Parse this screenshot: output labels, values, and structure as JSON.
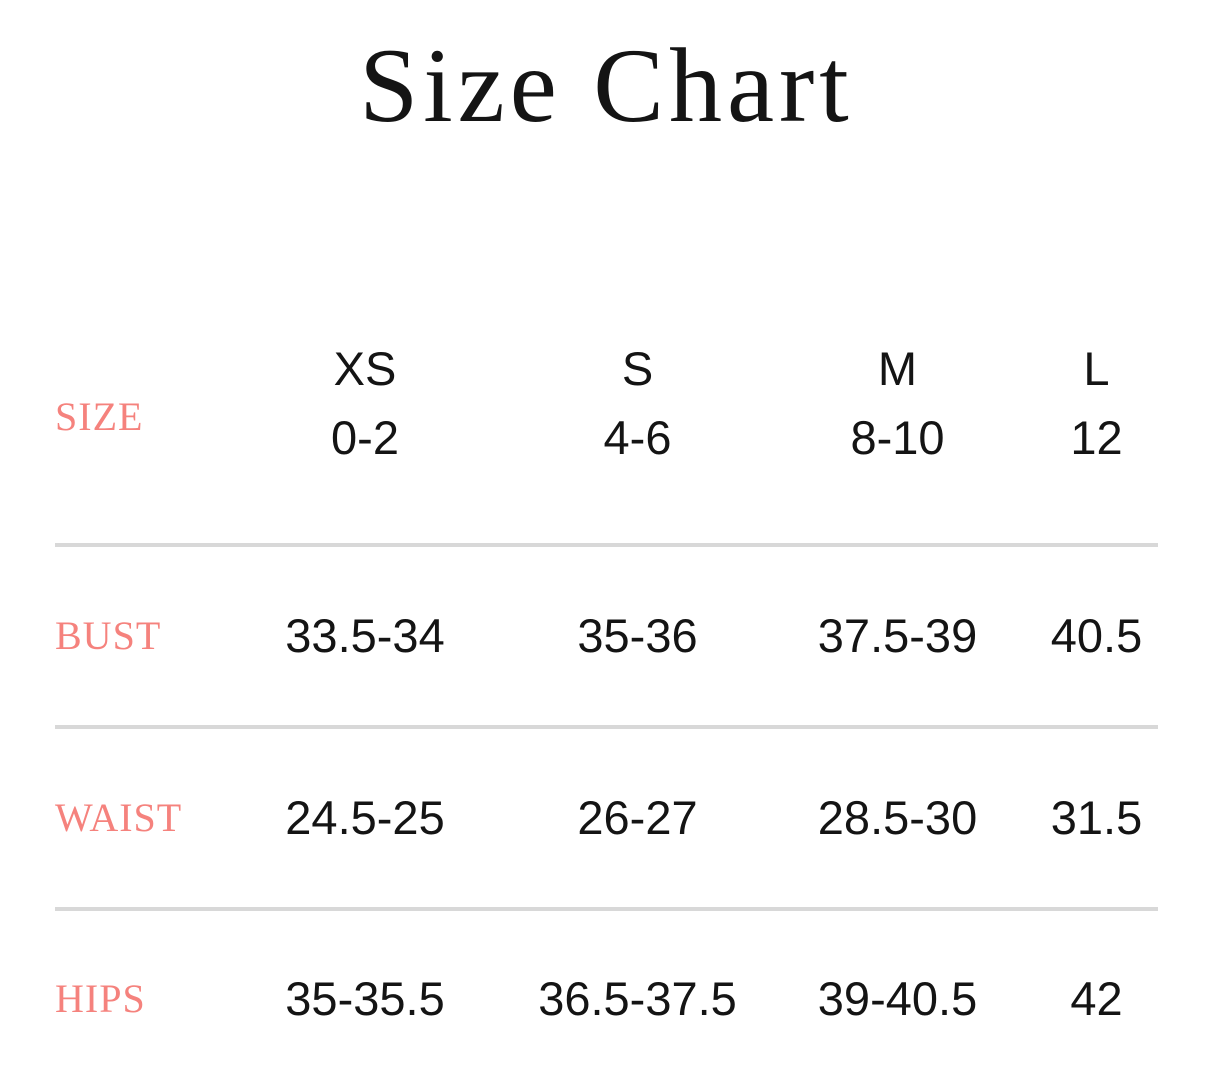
{
  "page": {
    "title": "Size Chart"
  },
  "colors": {
    "accent": "#f5827d",
    "text": "#141414",
    "divider": "#d8d8d8",
    "background": "#ffffff"
  },
  "table": {
    "row_header_label": "SIZE",
    "columns": [
      {
        "size": "XS",
        "range": "0-2"
      },
      {
        "size": "S",
        "range": "4-6"
      },
      {
        "size": "M",
        "range": "8-10"
      },
      {
        "size": "L",
        "range": "12"
      }
    ],
    "rows": [
      {
        "label": "BUST",
        "values": [
          "33.5-34",
          "35-36",
          "37.5-39",
          "40.5"
        ]
      },
      {
        "label": "WAIST",
        "values": [
          "24.5-25",
          "26-27",
          "28.5-30",
          "31.5"
        ]
      },
      {
        "label": "HIPS",
        "values": [
          "35-35.5",
          "36.5-37.5",
          "39-40.5",
          "42"
        ]
      }
    ]
  },
  "chart_data": {
    "type": "table",
    "title": "Size Chart",
    "columns": [
      "SIZE",
      "XS (0-2)",
      "S (4-6)",
      "M (8-10)",
      "L (12)"
    ],
    "rows": [
      [
        "BUST",
        "33.5-34",
        "35-36",
        "37.5-39",
        "40.5"
      ],
      [
        "WAIST",
        "24.5-25",
        "26-27",
        "28.5-30",
        "31.5"
      ],
      [
        "HIPS",
        "35-35.5",
        "36.5-37.5",
        "39-40.5",
        "42"
      ]
    ]
  }
}
